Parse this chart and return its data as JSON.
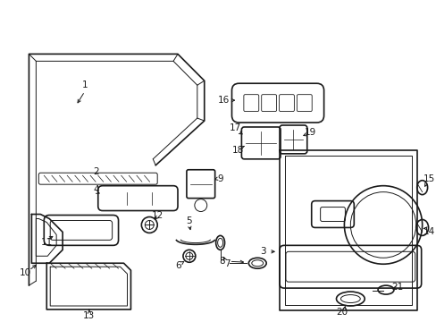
{
  "bg_color": "#ffffff",
  "line_color": "#1a1a1a",
  "text_color": "#1a1a1a",
  "figsize": [
    4.89,
    3.6
  ],
  "dpi": 100
}
